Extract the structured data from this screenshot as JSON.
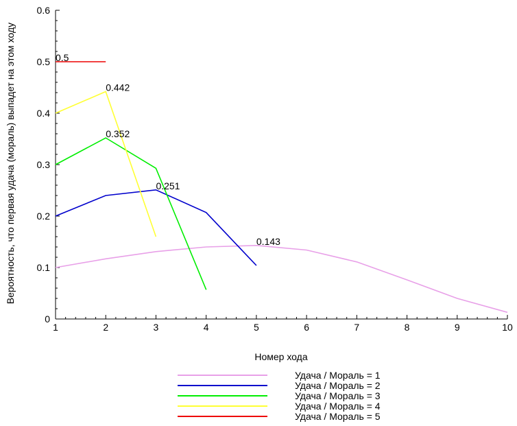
{
  "chart_data": {
    "type": "line",
    "title": "",
    "xlabel": "Номер хода",
    "ylabel": "Вероятность, что первая удача (мораль) выпадет на этом ходу",
    "xlim": [
      1,
      10
    ],
    "ylim": [
      0,
      0.6
    ],
    "x_ticks": [
      1,
      2,
      3,
      4,
      5,
      6,
      7,
      8,
      9,
      10
    ],
    "y_ticks": [
      0,
      0.1,
      0.2,
      0.3,
      0.4,
      0.5,
      0.6
    ],
    "y_tick_labels": [
      "0",
      "0.1",
      "0.2",
      "0.3",
      "0.4",
      "0.5",
      "0.6"
    ],
    "grid": false,
    "legend_position": "bottom",
    "series": [
      {
        "name": "Удача / Мораль = 1",
        "color": "#e8a0e8",
        "x": [
          1,
          2,
          3,
          4,
          5,
          6,
          7,
          8,
          9,
          10
        ],
        "y": [
          0.1,
          0.117,
          0.131,
          0.14,
          0.143,
          0.134,
          0.111,
          0.076,
          0.04,
          0.013
        ]
      },
      {
        "name": "Удача / Мораль = 2",
        "color": "#0000cc",
        "x": [
          1,
          2,
          3,
          4,
          5
        ],
        "y": [
          0.2,
          0.24,
          0.251,
          0.207,
          0.104
        ]
      },
      {
        "name": "Удача / Мораль = 3",
        "color": "#00ee00",
        "x": [
          1,
          2,
          3,
          4
        ],
        "y": [
          0.3,
          0.352,
          0.293,
          0.057
        ]
      },
      {
        "name": "Удача / Мораль = 4",
        "color": "#ffff33",
        "x": [
          1,
          2,
          3
        ],
        "y": [
          0.4,
          0.442,
          0.16
        ]
      },
      {
        "name": "Удача / Мораль = 5",
        "color": "#ee0000",
        "x": [
          1,
          2
        ],
        "y": [
          0.5,
          0.5
        ]
      }
    ],
    "annotations": [
      {
        "text": "0.5",
        "x": 1,
        "y": 0.5
      },
      {
        "text": "0.442",
        "x": 2,
        "y": 0.442
      },
      {
        "text": "0.352",
        "x": 2,
        "y": 0.352
      },
      {
        "text": "0.251",
        "x": 3,
        "y": 0.251
      },
      {
        "text": "0.143",
        "x": 5,
        "y": 0.143
      }
    ]
  }
}
